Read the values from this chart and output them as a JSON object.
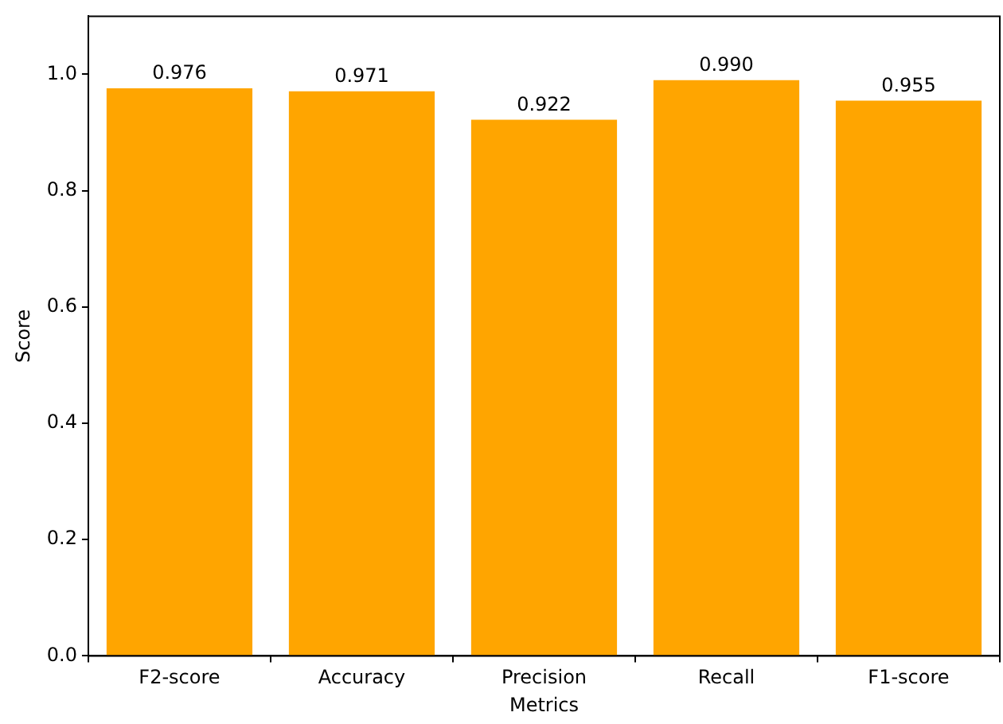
{
  "chart_data": {
    "type": "bar",
    "xlabel": "Metrics",
    "ylabel": "Score",
    "categories": [
      "F2-score",
      "Accuracy",
      "Precision",
      "Recall",
      "F1-score"
    ],
    "values": [
      0.976,
      0.971,
      0.922,
      0.99,
      0.955
    ],
    "value_labels": [
      "0.976",
      "0.971",
      "0.922",
      "0.990",
      "0.955"
    ],
    "color": "#ffa500",
    "ylim": [
      0,
      1.1
    ],
    "yticks": [
      {
        "value": 0,
        "label": "0.0"
      },
      {
        "value": 0.2,
        "label": "0.2"
      },
      {
        "value": 0.4,
        "label": "0.4"
      },
      {
        "value": 0.6,
        "label": "0.6"
      },
      {
        "value": 0.8,
        "label": "0.8"
      },
      {
        "value": 1,
        "label": "1.0"
      }
    ],
    "grid": false
  }
}
